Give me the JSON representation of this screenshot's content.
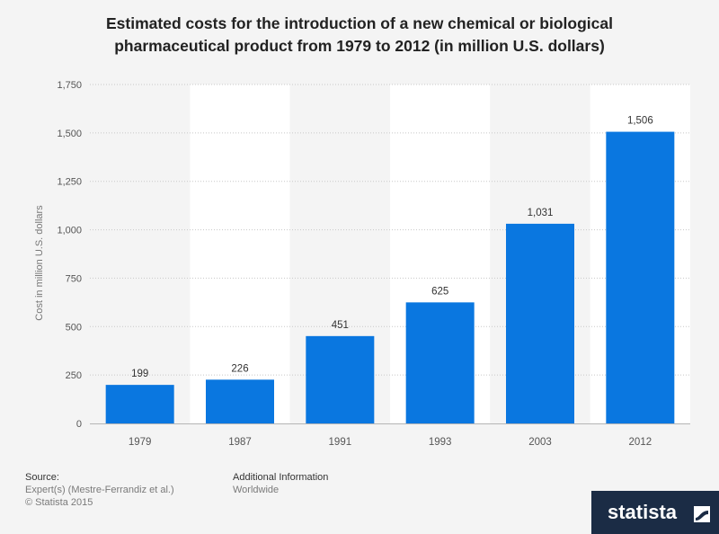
{
  "chart_data": {
    "type": "bar",
    "title_lines": [
      "Estimated costs for the introduction of a new chemical or biological",
      "pharmaceutical product from 1979 to 2012 (in million U.S. dollars)"
    ],
    "categories": [
      "1979",
      "1987",
      "1991",
      "1993",
      "2003",
      "2012"
    ],
    "values": [
      199,
      226,
      451,
      625,
      1031,
      1506
    ],
    "value_labels": [
      "199",
      "226",
      "451",
      "625",
      "1,031",
      "1,506"
    ],
    "ylabel": "Cost in million U.S. dollars",
    "xlabel": "",
    "ylim": [
      0,
      1750
    ],
    "yticks": [
      0,
      250,
      500,
      750,
      1000,
      1250,
      1500,
      1750
    ],
    "ytick_labels": [
      "0",
      "250",
      "500",
      "750",
      "1,000",
      "1,250",
      "1,500",
      "1,750"
    ],
    "grid": true,
    "bar_color": "#0a77e0"
  },
  "footer": {
    "source_heading": "Source:",
    "source_text": "Expert(s) (Mestre-Ferrandiz et al.)",
    "copyright": "© Statista 2015",
    "additional_heading": "Additional Information",
    "additional_text": "Worldwide"
  },
  "brand": {
    "name": "statista"
  }
}
